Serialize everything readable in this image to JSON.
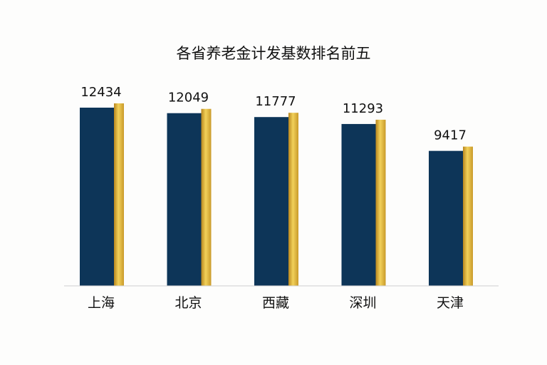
{
  "chart_data": {
    "type": "bar",
    "title": "各省养老金计发基数排名前五",
    "categories": [
      "上海",
      "北京",
      "西藏",
      "深圳",
      "天津"
    ],
    "values": [
      12434,
      12049,
      11777,
      11293,
      9417
    ],
    "xlabel": "",
    "ylabel": "",
    "ylim": [
      0,
      13000
    ],
    "grid": false,
    "legend": "none"
  },
  "colors": {
    "bar_main": "#0d3558",
    "bar_accent_light": "#f2d15a",
    "bar_accent_dark": "#b8861e",
    "baseline": "#cfcfcf",
    "text": "#111111",
    "background": "#fdfdfc"
  }
}
